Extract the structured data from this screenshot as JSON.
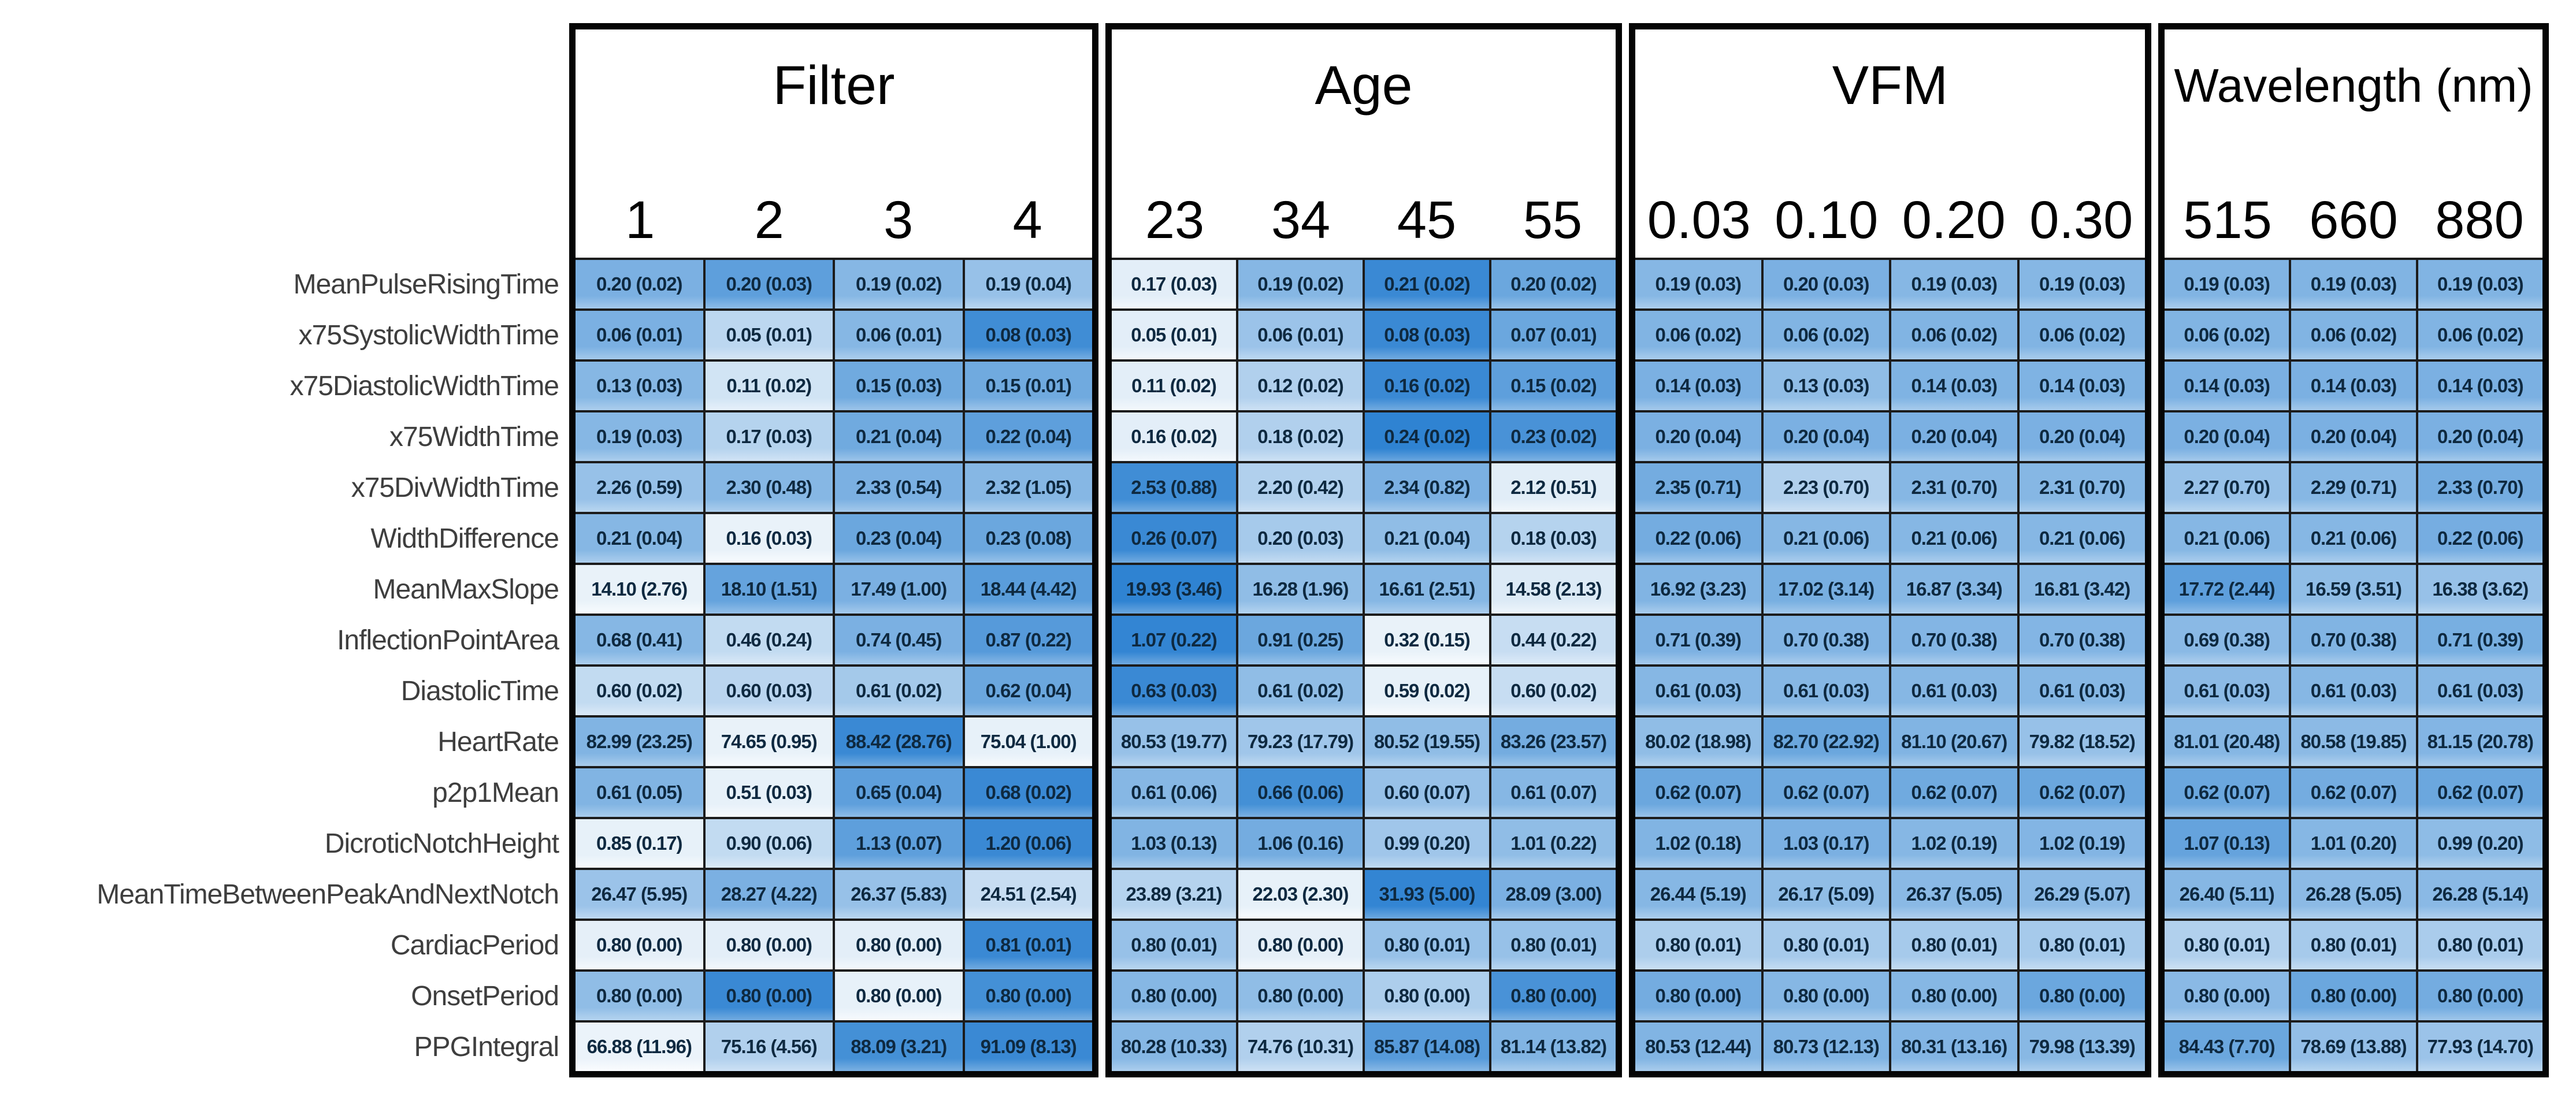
{
  "chart_data": {
    "type": "heatmap",
    "title": "",
    "description": "Mean (SD) of PPG pulse features grouped by Filter, Age, VFM and Wavelength (nm)",
    "legend_position": "none",
    "rows": [
      "MeanPulseRisingTime",
      "x75SystolicWidthTime",
      "x75DiastolicWidthTime",
      "x75WidthTime",
      "x75DivWidthTime",
      "WidthDifference",
      "MeanMaxSlope",
      "InflectionPointArea",
      "DiastolicTime",
      "HeartRate",
      "p2p1Mean",
      "DicroticNotchHeight",
      "MeanTimeBetweenPeakAndNextNotch",
      "CardiacPeriod",
      "OnsetPeriod",
      "PPGIntegral"
    ],
    "groups": [
      {
        "key": "filter",
        "label": "Filter",
        "columns": [
          "1",
          "2",
          "3",
          "4"
        ]
      },
      {
        "key": "age",
        "label": "Age",
        "columns": [
          "23",
          "34",
          "45",
          "55"
        ]
      },
      {
        "key": "vfm",
        "label": "VFM",
        "columns": [
          "0.03",
          "0.10",
          "0.20",
          "0.30"
        ]
      },
      {
        "key": "wavelength",
        "label": "Wavelength (nm)",
        "columns": [
          "515",
          "660",
          "880"
        ]
      }
    ],
    "cells": {
      "filter": {
        "values": [
          [
            "0.20 (0.02)",
            "0.20 (0.03)",
            "0.19 (0.02)",
            "0.19 (0.04)"
          ],
          [
            "0.06 (0.01)",
            "0.05 (0.01)",
            "0.06 (0.01)",
            "0.08 (0.03)"
          ],
          [
            "0.13 (0.03)",
            "0.11 (0.02)",
            "0.15 (0.03)",
            "0.15 (0.01)"
          ],
          [
            "0.19 (0.03)",
            "0.17 (0.03)",
            "0.21 (0.04)",
            "0.22 (0.04)"
          ],
          [
            "2.26 (0.59)",
            "2.30 (0.48)",
            "2.33 (0.54)",
            "2.32 (1.05)"
          ],
          [
            "0.21 (0.04)",
            "0.16 (0.03)",
            "0.23 (0.04)",
            "0.23 (0.08)"
          ],
          [
            "14.10 (2.76)",
            "18.10 (1.51)",
            "17.49 (1.00)",
            "18.44 (4.42)"
          ],
          [
            "0.68 (0.41)",
            "0.46 (0.24)",
            "0.74 (0.45)",
            "0.87 (0.22)"
          ],
          [
            "0.60 (0.02)",
            "0.60 (0.03)",
            "0.61 (0.02)",
            "0.62 (0.04)"
          ],
          [
            "82.99 (23.25)",
            "74.65 (0.95)",
            "88.42 (28.76)",
            "75.04 (1.00)"
          ],
          [
            "0.61 (0.05)",
            "0.51 (0.03)",
            "0.65 (0.04)",
            "0.68 (0.02)"
          ],
          [
            "0.85 (0.17)",
            "0.90 (0.06)",
            "1.13 (0.07)",
            "1.20 (0.06)"
          ],
          [
            "26.47 (5.95)",
            "28.27 (4.22)",
            "26.37 (5.83)",
            "24.51 (2.54)"
          ],
          [
            "0.80 (0.00)",
            "0.80 (0.00)",
            "0.80 (0.00)",
            "0.81 (0.01)"
          ],
          [
            "0.80 (0.00)",
            "0.80 (0.00)",
            "0.80 (0.00)",
            "0.80 (0.00)"
          ],
          [
            "66.88 (11.96)",
            "75.16 (4.56)",
            "88.09 (3.21)",
            "91.09 (8.13)"
          ]
        ],
        "shades": [
          [
            0.55,
            0.68,
            0.5,
            0.42
          ],
          [
            0.55,
            0.25,
            0.5,
            0.82
          ],
          [
            0.5,
            0.15,
            0.6,
            0.6
          ],
          [
            0.5,
            0.28,
            0.6,
            0.68
          ],
          [
            0.42,
            0.5,
            0.55,
            0.5
          ],
          [
            0.5,
            0.04,
            0.62,
            0.62
          ],
          [
            0.04,
            0.65,
            0.55,
            0.7
          ],
          [
            0.5,
            0.22,
            0.55,
            0.72
          ],
          [
            0.22,
            0.26,
            0.36,
            0.62
          ],
          [
            0.52,
            0.04,
            0.85,
            0.05
          ],
          [
            0.52,
            0.05,
            0.68,
            0.85
          ],
          [
            0.05,
            0.22,
            0.68,
            0.85
          ],
          [
            0.4,
            0.55,
            0.42,
            0.2
          ],
          [
            0.06,
            0.07,
            0.07,
            0.85
          ],
          [
            0.45,
            0.85,
            0.05,
            0.8
          ],
          [
            0.03,
            0.3,
            0.8,
            0.85
          ]
        ]
      },
      "age": {
        "values": [
          [
            "0.17 (0.03)",
            "0.19 (0.02)",
            "0.21 (0.02)",
            "0.20 (0.02)"
          ],
          [
            "0.05 (0.01)",
            "0.06 (0.01)",
            "0.08 (0.03)",
            "0.07 (0.01)"
          ],
          [
            "0.11 (0.02)",
            "0.12 (0.02)",
            "0.16 (0.02)",
            "0.15 (0.02)"
          ],
          [
            "0.16 (0.02)",
            "0.18 (0.02)",
            "0.24 (0.02)",
            "0.23 (0.02)"
          ],
          [
            "2.53 (0.88)",
            "2.20 (0.42)",
            "2.34 (0.82)",
            "2.12 (0.51)"
          ],
          [
            "0.26 (0.07)",
            "0.20 (0.03)",
            "0.21 (0.04)",
            "0.18 (0.03)"
          ],
          [
            "19.93 (3.46)",
            "16.28 (1.96)",
            "16.61 (2.51)",
            "14.58 (2.13)"
          ],
          [
            "1.07 (0.22)",
            "0.91 (0.25)",
            "0.32 (0.15)",
            "0.44 (0.22)"
          ],
          [
            "0.63 (0.03)",
            "0.61 (0.02)",
            "0.59 (0.02)",
            "0.60 (0.02)"
          ],
          [
            "80.53 (19.77)",
            "79.23 (17.79)",
            "80.52 (19.55)",
            "83.26 (23.57)"
          ],
          [
            "0.61 (0.06)",
            "0.66 (0.06)",
            "0.60 (0.07)",
            "0.61 (0.07)"
          ],
          [
            "1.03 (0.13)",
            "1.06 (0.16)",
            "0.99 (0.20)",
            "1.01 (0.22)"
          ],
          [
            "23.89 (3.21)",
            "22.03 (2.30)",
            "31.93 (5.00)",
            "28.09 (3.00)"
          ],
          [
            "0.80 (0.01)",
            "0.80 (0.00)",
            "0.80 (0.01)",
            "0.80 (0.01)"
          ],
          [
            "0.80 (0.00)",
            "0.80 (0.00)",
            "0.80 (0.00)",
            "0.80 (0.00)"
          ],
          [
            "80.28 (10.33)",
            "74.76 (10.31)",
            "85.87 (14.08)",
            "81.14 (13.82)"
          ]
        ],
        "shades": [
          [
            0.07,
            0.5,
            0.85,
            0.62
          ],
          [
            0.07,
            0.4,
            0.85,
            0.62
          ],
          [
            0.07,
            0.3,
            0.85,
            0.68
          ],
          [
            0.07,
            0.3,
            0.9,
            0.78
          ],
          [
            0.82,
            0.3,
            0.55,
            0.08
          ],
          [
            0.85,
            0.35,
            0.45,
            0.28
          ],
          [
            0.9,
            0.45,
            0.5,
            0.1
          ],
          [
            0.88,
            0.62,
            0.04,
            0.2
          ],
          [
            0.85,
            0.45,
            0.05,
            0.2
          ],
          [
            0.42,
            0.38,
            0.45,
            0.58
          ],
          [
            0.5,
            0.8,
            0.42,
            0.5
          ],
          [
            0.52,
            0.58,
            0.38,
            0.45
          ],
          [
            0.28,
            0.05,
            0.88,
            0.55
          ],
          [
            0.42,
            0.06,
            0.42,
            0.42
          ],
          [
            0.5,
            0.45,
            0.32,
            0.78
          ],
          [
            0.5,
            0.3,
            0.72,
            0.52
          ]
        ]
      },
      "vfm": {
        "values": [
          [
            "0.19 (0.03)",
            "0.20 (0.03)",
            "0.19 (0.03)",
            "0.19 (0.03)"
          ],
          [
            "0.06 (0.02)",
            "0.06 (0.02)",
            "0.06 (0.02)",
            "0.06 (0.02)"
          ],
          [
            "0.14 (0.03)",
            "0.13 (0.03)",
            "0.14 (0.03)",
            "0.14 (0.03)"
          ],
          [
            "0.20 (0.04)",
            "0.20 (0.04)",
            "0.20 (0.04)",
            "0.20 (0.04)"
          ],
          [
            "2.35 (0.71)",
            "2.23 (0.70)",
            "2.31 (0.70)",
            "2.31 (0.70)"
          ],
          [
            "0.22 (0.06)",
            "0.21 (0.06)",
            "0.21 (0.06)",
            "0.21 (0.06)"
          ],
          [
            "16.92 (3.23)",
            "17.02 (3.14)",
            "16.87 (3.34)",
            "16.81 (3.42)"
          ],
          [
            "0.71 (0.39)",
            "0.70 (0.38)",
            "0.70 (0.38)",
            "0.70 (0.38)"
          ],
          [
            "0.61 (0.03)",
            "0.61 (0.03)",
            "0.61 (0.03)",
            "0.61 (0.03)"
          ],
          [
            "80.02 (18.98)",
            "82.70 (22.92)",
            "81.10 (20.67)",
            "79.82 (18.52)"
          ],
          [
            "0.62 (0.07)",
            "0.62 (0.07)",
            "0.62 (0.07)",
            "0.62 (0.07)"
          ],
          [
            "1.02 (0.18)",
            "1.03 (0.17)",
            "1.02 (0.19)",
            "1.02 (0.19)"
          ],
          [
            "26.44 (5.19)",
            "26.17 (5.09)",
            "26.37 (5.05)",
            "26.29 (5.07)"
          ],
          [
            "0.80 (0.01)",
            "0.80 (0.01)",
            "0.80 (0.01)",
            "0.80 (0.01)"
          ],
          [
            "0.80 (0.00)",
            "0.80 (0.00)",
            "0.80 (0.00)",
            "0.80 (0.00)"
          ],
          [
            "80.53 (12.44)",
            "80.73 (12.13)",
            "80.31 (13.16)",
            "79.98 (13.39)"
          ]
        ],
        "shades": [
          [
            0.5,
            0.55,
            0.5,
            0.5
          ],
          [
            0.52,
            0.52,
            0.52,
            0.52
          ],
          [
            0.55,
            0.45,
            0.53,
            0.53
          ],
          [
            0.55,
            0.55,
            0.55,
            0.55
          ],
          [
            0.58,
            0.3,
            0.5,
            0.5
          ],
          [
            0.58,
            0.5,
            0.5,
            0.5
          ],
          [
            0.52,
            0.56,
            0.5,
            0.49
          ],
          [
            0.54,
            0.51,
            0.51,
            0.51
          ],
          [
            0.5,
            0.5,
            0.5,
            0.5
          ],
          [
            0.45,
            0.62,
            0.52,
            0.42
          ],
          [
            0.62,
            0.6,
            0.6,
            0.62
          ],
          [
            0.52,
            0.55,
            0.5,
            0.51
          ],
          [
            0.5,
            0.45,
            0.48,
            0.47
          ],
          [
            0.32,
            0.35,
            0.35,
            0.35
          ],
          [
            0.58,
            0.5,
            0.5,
            0.62
          ],
          [
            0.52,
            0.53,
            0.51,
            0.49
          ]
        ]
      },
      "wavelength": {
        "values": [
          [
            "0.19 (0.03)",
            "0.19 (0.03)",
            "0.19 (0.03)"
          ],
          [
            "0.06 (0.02)",
            "0.06 (0.02)",
            "0.06 (0.02)"
          ],
          [
            "0.14 (0.03)",
            "0.14 (0.03)",
            "0.14 (0.03)"
          ],
          [
            "0.20 (0.04)",
            "0.20 (0.04)",
            "0.20 (0.04)"
          ],
          [
            "2.27 (0.70)",
            "2.29 (0.71)",
            "2.33 (0.70)"
          ],
          [
            "0.21 (0.06)",
            "0.21 (0.06)",
            "0.22 (0.06)"
          ],
          [
            "17.72 (2.44)",
            "16.59 (3.51)",
            "16.38 (3.62)"
          ],
          [
            "0.69 (0.38)",
            "0.70 (0.38)",
            "0.71 (0.39)"
          ],
          [
            "0.61 (0.03)",
            "0.61 (0.03)",
            "0.61 (0.03)"
          ],
          [
            "81.01 (20.48)",
            "80.58 (19.85)",
            "81.15 (20.78)"
          ],
          [
            "0.62 (0.07)",
            "0.62 (0.07)",
            "0.62 (0.07)"
          ],
          [
            "1.07 (0.13)",
            "1.01 (0.20)",
            "0.99 (0.20)"
          ],
          [
            "26.40 (5.11)",
            "26.28 (5.05)",
            "26.28 (5.14)"
          ],
          [
            "0.80 (0.01)",
            "0.80 (0.01)",
            "0.80 (0.01)"
          ],
          [
            "0.80 (0.00)",
            "0.80 (0.00)",
            "0.80 (0.00)"
          ],
          [
            "84.43 (7.70)",
            "78.69 (13.88)",
            "77.93 (14.70)"
          ]
        ],
        "shades": [
          [
            0.52,
            0.52,
            0.52
          ],
          [
            0.52,
            0.52,
            0.52
          ],
          [
            0.55,
            0.55,
            0.55
          ],
          [
            0.55,
            0.55,
            0.55
          ],
          [
            0.42,
            0.5,
            0.58
          ],
          [
            0.5,
            0.5,
            0.57
          ],
          [
            0.68,
            0.45,
            0.42
          ],
          [
            0.48,
            0.52,
            0.56
          ],
          [
            0.47,
            0.5,
            0.5
          ],
          [
            0.5,
            0.47,
            0.51
          ],
          [
            0.62,
            0.58,
            0.62
          ],
          [
            0.65,
            0.5,
            0.46
          ],
          [
            0.5,
            0.47,
            0.48
          ],
          [
            0.3,
            0.35,
            0.33
          ],
          [
            0.48,
            0.62,
            0.58
          ],
          [
            0.62,
            0.44,
            0.4
          ]
        ]
      }
    },
    "colors": {
      "heat_low": "#f2f7fb",
      "heat_high": "#1976cd",
      "cell_text": "#0e2940",
      "grid_line": "#1c1c1c",
      "group_border": "#050505",
      "row_label": "#3e3e3e",
      "background": "#ffffff"
    }
  }
}
